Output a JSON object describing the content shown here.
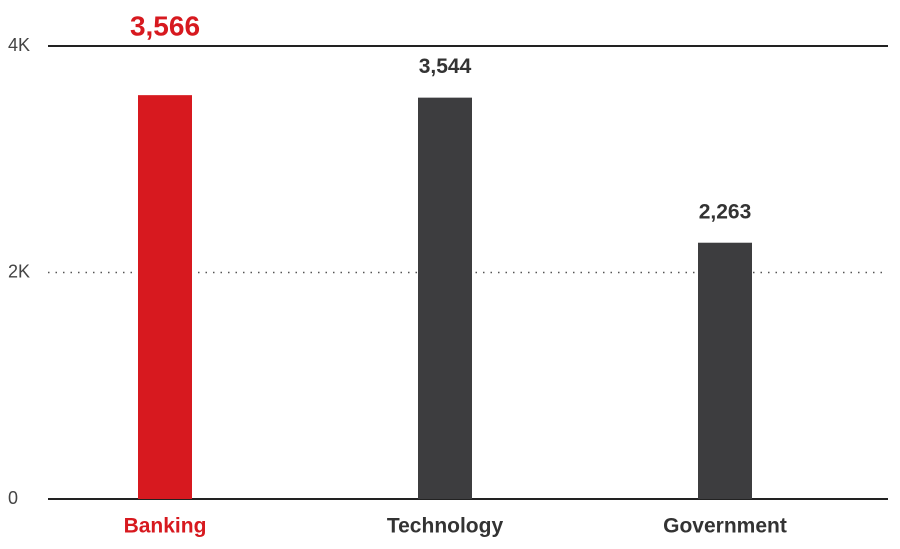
{
  "chart_data": {
    "type": "bar",
    "categories": [
      "Banking",
      "Technology",
      "Government"
    ],
    "values": [
      3566,
      3544,
      2263
    ],
    "value_labels": [
      "3,566",
      "3,544",
      "2,263"
    ],
    "colors": [
      "#d7191f",
      "#3d3d3f",
      "#3d3d3f"
    ],
    "highlight_color": "#d7191f",
    "ylim": [
      0,
      4000
    ],
    "yticks": [
      0,
      {
        "value": 2000,
        "label": "2K"
      },
      {
        "value": 4000,
        "label": "4K"
      }
    ],
    "grid": true
  }
}
